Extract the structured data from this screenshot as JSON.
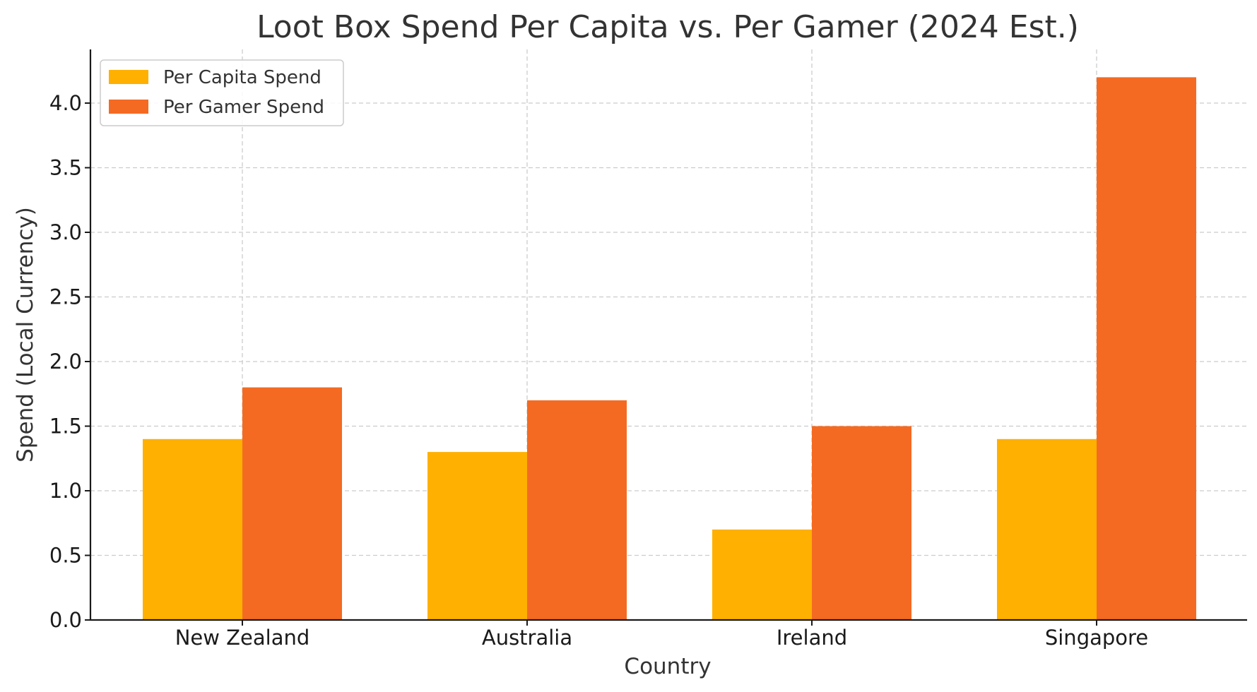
{
  "chart_data": {
    "type": "bar",
    "title": "Loot Box Spend Per Capita vs. Per Gamer (2024 Est.)",
    "xlabel": "Country",
    "ylabel": "Spend (Local Currency)",
    "categories": [
      "New Zealand",
      "Australia",
      "Ireland",
      "Singapore"
    ],
    "series": [
      {
        "name": "Per Capita Spend",
        "color": "#FFB000",
        "values": [
          1.4,
          1.3,
          0.7,
          1.4
        ]
      },
      {
        "name": "Per Gamer Spend",
        "color": "#F46A22",
        "values": [
          1.8,
          1.7,
          1.5,
          4.2
        ]
      }
    ],
    "ylim": [
      0,
      4.4
    ],
    "yticks": [
      "0.0",
      "0.5",
      "1.0",
      "1.5",
      "2.0",
      "2.5",
      "3.0",
      "3.5",
      "4.0"
    ],
    "grid": true,
    "legend_position": "top-left"
  }
}
